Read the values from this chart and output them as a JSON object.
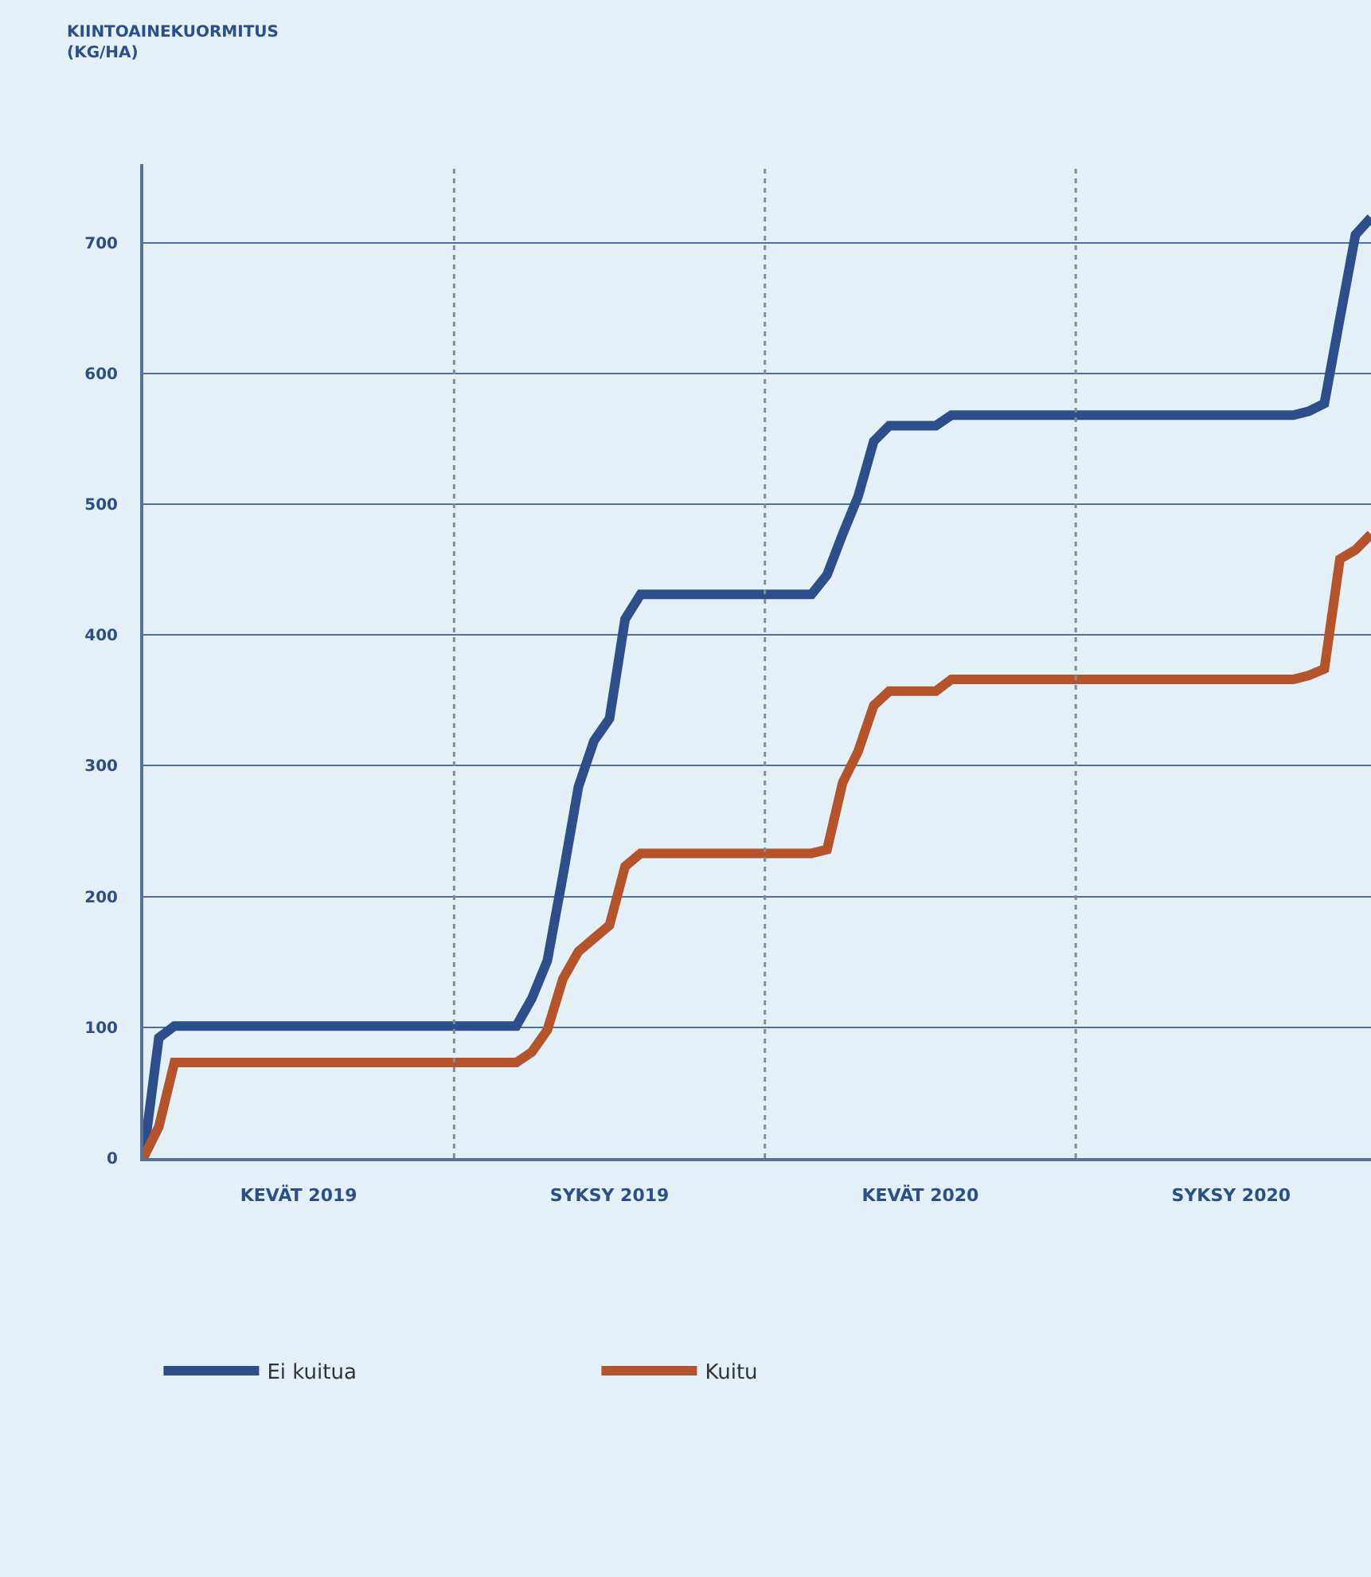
{
  "chart_data": {
    "type": "line",
    "annotations": [
      "KIINTOAINEKUORMITUS\n(KG/HA)"
    ],
    "categories": [
      null,
      null,
      null,
      null,
      null,
      null,
      null,
      null,
      null,
      null,
      "KEVÄT 2019",
      null,
      null,
      null,
      null,
      null,
      null,
      null,
      null,
      null,
      null,
      null,
      null,
      null,
      null,
      null,
      null,
      null,
      null,
      null,
      "SYKSY 2019",
      null,
      null,
      null,
      null,
      null,
      null,
      null,
      null,
      null,
      null,
      null,
      null,
      null,
      null,
      null,
      null,
      null,
      null,
      null,
      "KEVÄT 2020",
      null,
      null,
      null,
      null,
      null,
      null,
      null,
      null,
      null,
      null,
      null,
      null,
      null,
      null,
      null,
      null,
      null,
      null,
      null,
      "SYKSY 2020",
      null,
      null,
      null,
      null,
      null,
      null,
      null,
      null,
      null
    ],
    "ylim": [
      0,
      760
    ],
    "yticks": [
      0,
      100,
      200,
      300,
      400,
      500,
      600,
      700
    ],
    "grid": "y",
    "legend": "bottom",
    "marker": "none",
    "line_style": "solid",
    "series": [
      {
        "name": "Ei kuitua",
        "color": "#2d4e8a",
        "values": [
          0,
          92,
          101,
          101,
          101,
          101,
          101,
          101,
          101,
          101,
          101,
          101,
          101,
          101,
          101,
          101,
          101,
          101,
          101,
          101,
          101,
          101,
          101,
          101,
          101,
          122,
          151,
          216,
          284,
          319,
          336,
          412,
          431,
          431,
          431,
          431,
          431,
          431,
          431,
          431,
          431,
          431,
          431,
          431,
          446,
          477,
          506,
          548,
          560,
          560,
          560,
          560,
          568,
          568,
          568,
          568,
          568,
          568,
          568,
          568,
          568,
          568,
          568,
          568,
          568,
          568,
          568,
          568,
          568,
          568,
          568,
          568,
          568,
          568,
          568,
          571,
          577,
          642,
          706,
          719
        ]
      },
      {
        "name": "Kuitu",
        "color": "#b5532b",
        "values": [
          0,
          24,
          73,
          73,
          73,
          73,
          73,
          73,
          73,
          73,
          73,
          73,
          73,
          73,
          73,
          73,
          73,
          73,
          73,
          73,
          73,
          73,
          73,
          73,
          73,
          81,
          98,
          137,
          158,
          168,
          178,
          223,
          233,
          233,
          233,
          233,
          233,
          233,
          233,
          233,
          233,
          233,
          233,
          233,
          236,
          287,
          311,
          346,
          357,
          357,
          357,
          357,
          366,
          366,
          366,
          366,
          366,
          366,
          366,
          366,
          366,
          366,
          366,
          366,
          366,
          366,
          366,
          366,
          366,
          366,
          366,
          366,
          366,
          366,
          366,
          369,
          374,
          458,
          465,
          477
        ]
      }
    ]
  }
}
